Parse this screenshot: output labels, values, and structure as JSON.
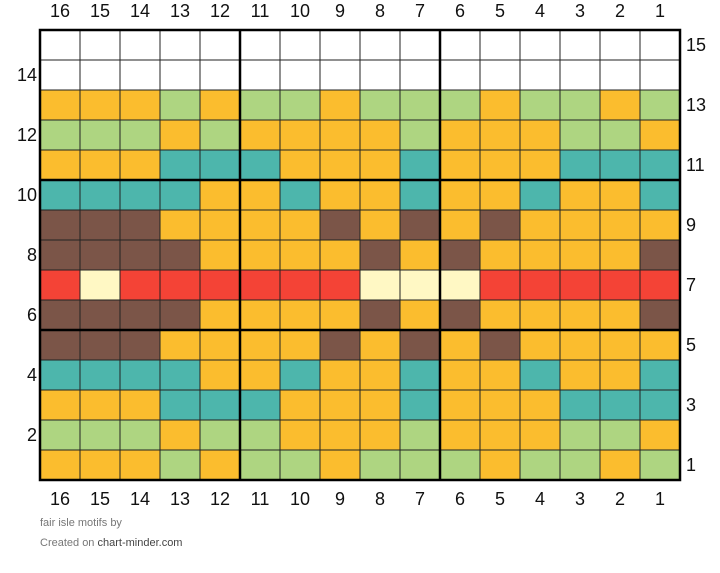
{
  "chart": {
    "title": "fair isle motifs",
    "by_label": "by",
    "created_label": "Created on",
    "site": "chart-minder.com",
    "columns": 16,
    "rows": 15,
    "col_labels": [
      "16",
      "15",
      "14",
      "13",
      "12",
      "11",
      "10",
      "9",
      "8",
      "7",
      "6",
      "5",
      "4",
      "3",
      "2",
      "1"
    ],
    "right_row_labels": [
      "15",
      "13",
      "11",
      "9",
      "7",
      "5",
      "3",
      "1"
    ],
    "left_row_labels": [
      "14",
      "12",
      "10",
      "8",
      "6",
      "4",
      "2"
    ],
    "palette": {
      "W": "#ffffff",
      "O": "#fbbd2e",
      "G": "#aed581",
      "T": "#4db6ac",
      "B": "#7b5548",
      "R": "#f44336",
      "C": "#fff8c4"
    },
    "grid_rows": [
      "WWWWWWWWWWWWWWWW",
      "WWWWWWWWWWWWWWWW",
      "OOOGOGGOGGGOGGOG",
      "GGGOGOOOOGOOOGGO",
      "OOOTTTOOOTOOOTTT",
      "TTTTOOTOOTOOTOOT",
      "BBBOOOOBOBOBOOOO",
      "BBBBOOOOBOBOOOOB",
      "RCRRRRRRCCCRRRRR",
      "BBBBOOOOBOBOOOOB",
      "BBBOOOOBOBOBOOOO",
      "TTTTOOTOOTOOTOOT",
      "OOOTTTOOOTOOOTTT",
      "GGGOGGOOOGOOOGGO",
      "OOOGOGGOGGGOGGOG"
    ]
  }
}
